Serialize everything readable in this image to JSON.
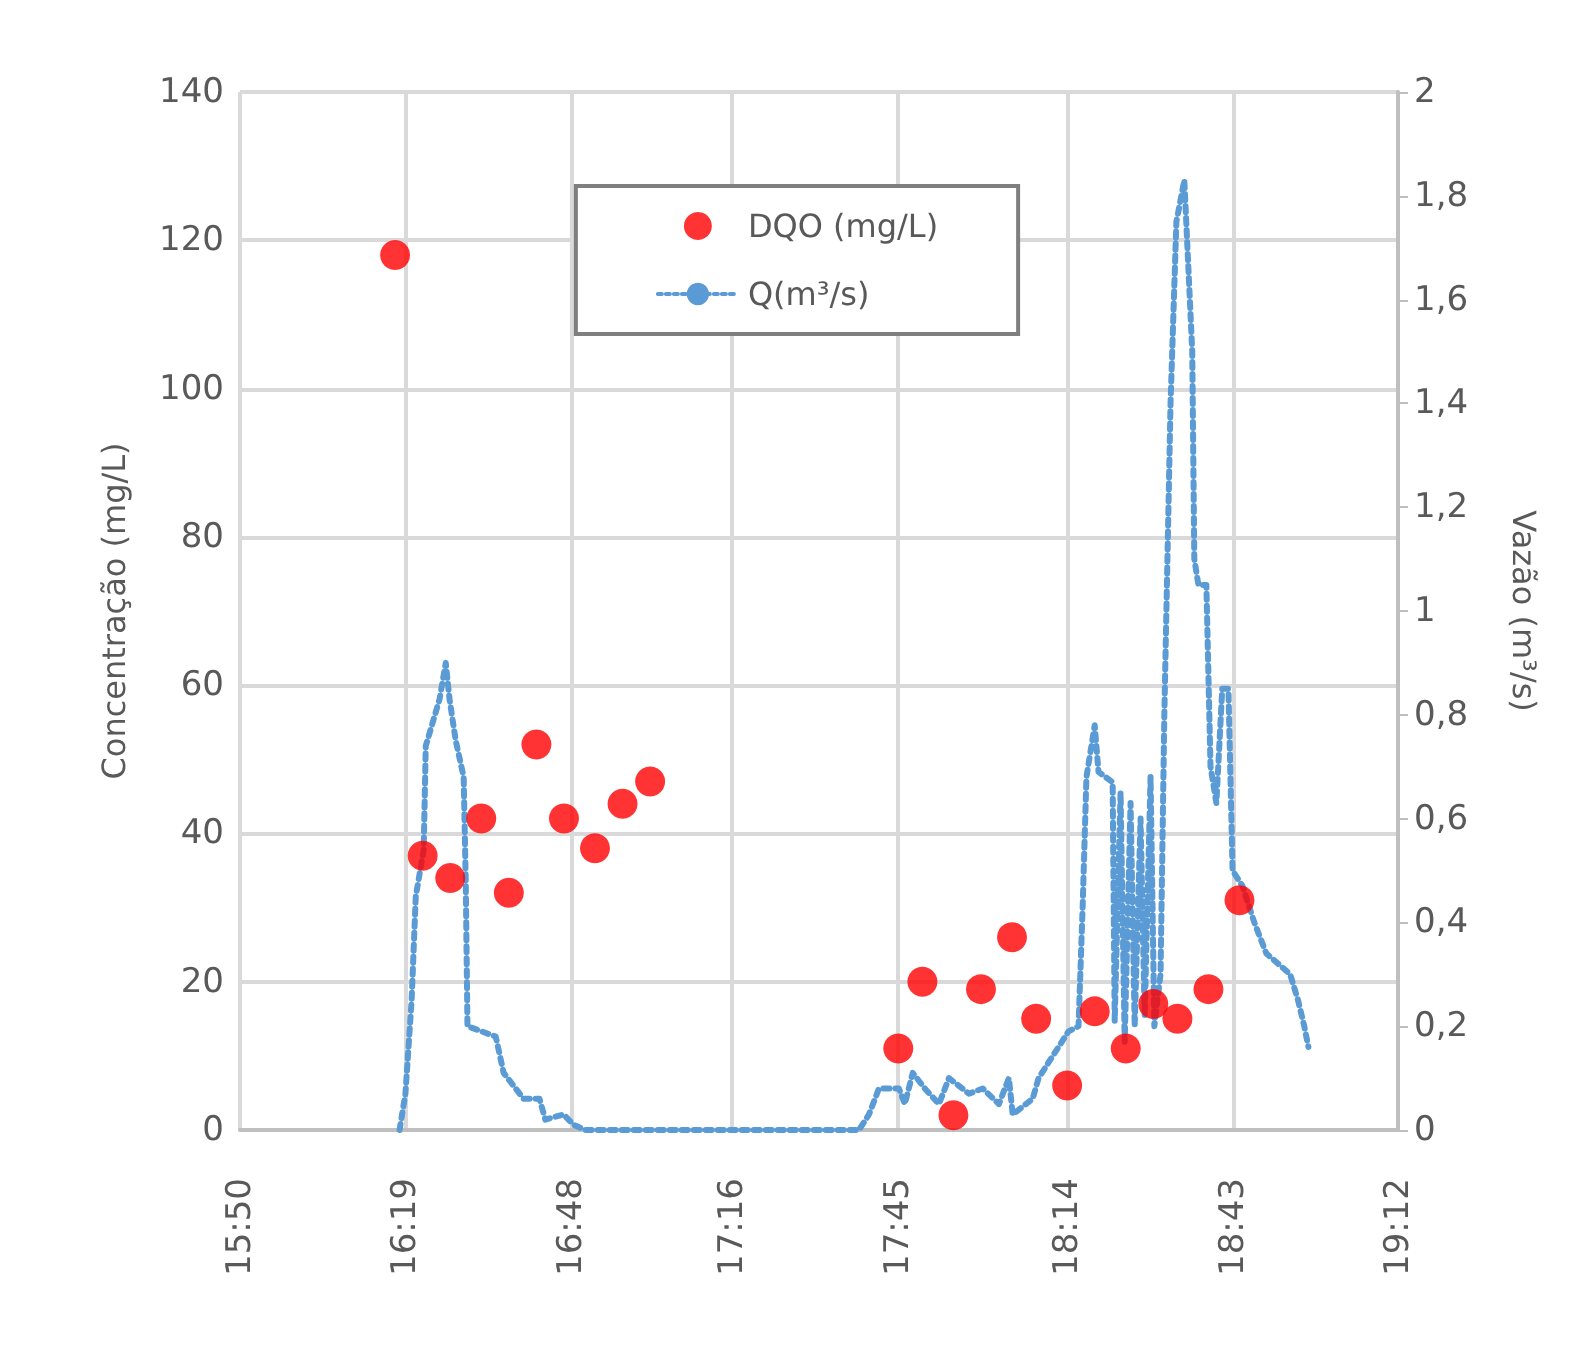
{
  "chart_data": {
    "type": "scatter",
    "ylabel": "Concentração (mg/L)",
    "y2label": "Vazão (m³/s)",
    "xlim": [
      15.84,
      19.2
    ],
    "xticks": [
      {
        "value": 15.84,
        "label": "15:50"
      },
      {
        "value": 16.32,
        "label": "16:19"
      },
      {
        "value": 16.8,
        "label": "16:48"
      },
      {
        "value": 17.2667,
        "label": "17:16"
      },
      {
        "value": 17.75,
        "label": "17:45"
      },
      {
        "value": 18.24,
        "label": "18:14"
      },
      {
        "value": 18.72,
        "label": "18:43"
      },
      {
        "value": 19.2,
        "label": "19:12"
      }
    ],
    "ylim": [
      0,
      140
    ],
    "yticks": [
      0,
      20,
      40,
      60,
      80,
      100,
      120,
      140
    ],
    "y2lim": [
      0,
      2
    ],
    "y2ticks": [
      0,
      {
        "value": 0.2,
        "label": "0,2"
      },
      {
        "value": 0.4,
        "label": "0,4"
      },
      {
        "value": 0.6,
        "label": "0,6"
      },
      {
        "value": 0.8,
        "label": "0,8"
      },
      1,
      {
        "value": 1.2,
        "label": "1,2"
      },
      {
        "value": 1.4,
        "label": "1,4"
      },
      {
        "value": 1.6,
        "label": "1,6"
      },
      {
        "value": 1.8,
        "label": "1,8"
      },
      2
    ],
    "grid": true,
    "legend": "top",
    "series": [
      {
        "name": "DQO (mg/L)",
        "color": "#ff0000",
        "marker": "circle",
        "x": [
          16.29,
          16.37,
          16.45,
          16.54,
          16.62,
          16.7,
          16.78,
          16.87,
          16.95,
          17.03,
          17.75,
          17.82,
          17.91,
          17.99,
          18.08,
          18.15,
          18.24,
          18.32,
          18.41,
          18.49,
          18.56,
          18.65,
          18.74
        ],
        "values": [
          118,
          37,
          34,
          42,
          32,
          52,
          42,
          38,
          44,
          47,
          11,
          20,
          2,
          19,
          26,
          15,
          6,
          16,
          11,
          17,
          15,
          19,
          31
        ]
      },
      {
        "name": "Q(m³/s)",
        "type": "line",
        "axis": "y2",
        "color": "#5b9bd5",
        "marker": "none",
        "line_style": "dotted",
        "x": [
          16.303,
          16.32,
          16.338,
          16.35,
          16.373,
          16.379,
          16.419,
          16.437,
          16.448,
          16.466,
          16.489,
          16.495,
          16.5,
          16.582,
          16.605,
          16.663,
          16.709,
          16.726,
          16.779,
          16.808,
          16.842,
          17.636,
          17.665,
          17.694,
          17.752,
          17.769,
          17.792,
          17.827,
          17.868,
          17.897,
          17.955,
          17.995,
          18.042,
          18.071,
          18.082,
          18.14,
          18.157,
          18.215,
          18.244,
          18.273,
          18.285,
          18.296,
          18.32,
          18.331,
          18.372,
          18.378,
          18.395,
          18.407,
          18.424,
          18.436,
          18.453,
          18.465,
          18.482,
          18.493,
          18.511,
          18.522,
          18.54,
          18.557,
          18.58,
          18.603,
          18.609,
          18.621,
          18.644,
          18.656,
          18.673,
          18.69,
          18.708,
          18.72,
          18.749,
          18.783,
          18.818,
          18.853,
          18.887,
          18.91,
          18.928,
          18.94
        ],
        "values": [
          0,
          0.07,
          0.25,
          0.45,
          0.54,
          0.74,
          0.83,
          0.9,
          0.83,
          0.75,
          0.68,
          0.48,
          0.2,
          0.18,
          0.11,
          0.06,
          0.06,
          0.02,
          0.03,
          0.01,
          0,
          0,
          0.03,
          0.08,
          0.08,
          0.05,
          0.11,
          0.08,
          0.05,
          0.1,
          0.07,
          0.08,
          0.05,
          0.1,
          0.03,
          0.06,
          0.1,
          0.16,
          0.19,
          0.2,
          0.43,
          0.68,
          0.78,
          0.69,
          0.67,
          0.21,
          0.65,
          0.17,
          0.63,
          0.2,
          0.6,
          0.22,
          0.68,
          0.2,
          0.3,
          0.8,
          1.4,
          1.75,
          1.83,
          1.5,
          1.1,
          1.05,
          1.05,
          0.7,
          0.63,
          0.85,
          0.85,
          0.5,
          0.47,
          0.4,
          0.34,
          0.32,
          0.3,
          0.25,
          0.2,
          0.16
        ]
      }
    ]
  }
}
